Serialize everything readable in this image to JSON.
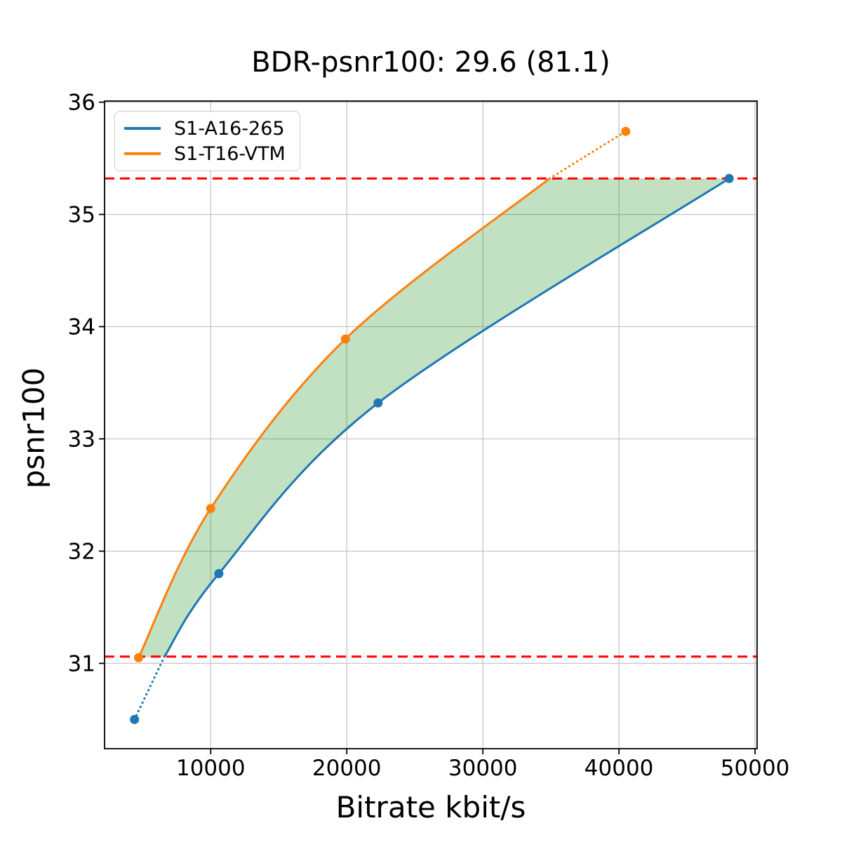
{
  "title": "BDR-psnr100: 29.6 (81.1)",
  "chart_data": {
    "type": "line",
    "title": "BDR-psnr100: 29.6 (81.1)",
    "xlabel": "Bitrate kbit/s",
    "ylabel": "psnr100",
    "xlim": [
      2200,
      50150
    ],
    "ylim": [
      30.24,
      36.01
    ],
    "xticks": [
      10000,
      20000,
      30000,
      40000,
      50000
    ],
    "xtick_labels": [
      "10000",
      "20000",
      "30000",
      "40000",
      "50000"
    ],
    "yticks": [
      31,
      32,
      33,
      34,
      35,
      36
    ],
    "ytick_labels": [
      "31",
      "32",
      "33",
      "34",
      "35",
      "36"
    ],
    "grid": true,
    "grid_color": "#c6c6c6",
    "legend_position": "upper left",
    "series": [
      {
        "name": "S1-A16-265",
        "color": "#1f77b4",
        "points": [
          [
            4400,
            30.5
          ],
          [
            10600,
            31.8
          ],
          [
            22300,
            33.32
          ],
          [
            48100,
            35.32
          ]
        ],
        "curve": [
          [
            6600,
            31.06
          ],
          [
            10600,
            31.8
          ],
          [
            22300,
            33.32
          ],
          [
            48100,
            35.32
          ]
        ],
        "dotted": [
          [
            4400,
            30.5
          ],
          [
            6600,
            31.06
          ]
        ]
      },
      {
        "name": "S1-T16-VTM",
        "color": "#ff7f0e",
        "points": [
          [
            4700,
            31.05
          ],
          [
            10000,
            32.38
          ],
          [
            19900,
            33.89
          ],
          [
            40500,
            35.74
          ]
        ],
        "curve": [
          [
            4700,
            31.05
          ],
          [
            10000,
            32.38
          ],
          [
            19900,
            33.89
          ],
          [
            34900,
            35.32
          ]
        ],
        "dotted": [
          [
            34900,
            35.32
          ],
          [
            40500,
            35.74
          ]
        ]
      }
    ],
    "bd_bound_lines": [
      {
        "y": 31.06,
        "color": "#ff0000",
        "style": "dashed"
      },
      {
        "y": 35.32,
        "color": "#ff0000",
        "style": "dashed"
      }
    ],
    "shaded_region": {
      "between": "curves",
      "color": "#008000",
      "opacity": 0.24
    },
    "bd_rate_value": "29.6",
    "bd_rate_secondary_value": "81.1"
  }
}
